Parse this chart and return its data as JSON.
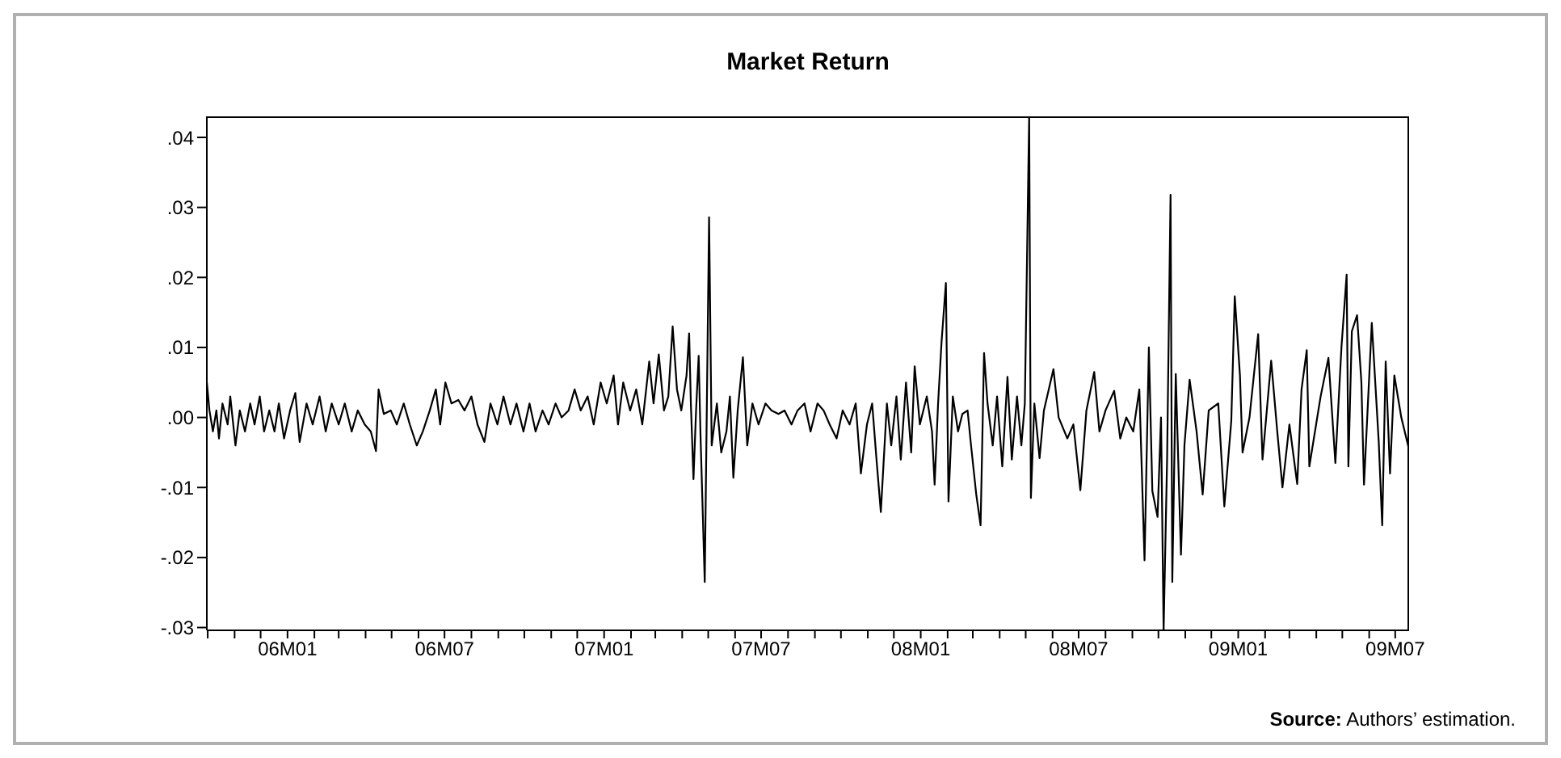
{
  "chart_data": {
    "type": "line",
    "title": "Market Return",
    "annotations": [
      "Source: Authors’ estimation."
    ],
    "x": [
      "2005-09-30",
      "2005-10-03",
      "2005-10-07",
      "2005-10-11",
      "2005-10-14",
      "2005-10-18",
      "2005-10-24",
      "2005-10-27",
      "2005-11-02",
      "2005-11-07",
      "2005-11-13",
      "2005-11-19",
      "2005-11-24",
      "2005-11-30",
      "2005-12-05",
      "2005-12-11",
      "2005-12-17",
      "2005-12-22",
      "2005-12-28",
      "2006-01-04",
      "2006-01-10",
      "2006-01-15",
      "2006-01-23",
      "2006-01-30",
      "2006-02-07",
      "2006-02-14",
      "2006-02-21",
      "2006-03-01",
      "2006-03-08",
      "2006-03-16",
      "2006-03-23",
      "2006-03-31",
      "2006-04-07",
      "2006-04-13",
      "2006-04-16",
      "2006-04-22",
      "2006-04-30",
      "2006-05-07",
      "2006-05-15",
      "2006-05-22",
      "2006-05-30",
      "2006-06-06",
      "2006-06-14",
      "2006-06-21",
      "2006-06-26",
      "2006-07-02",
      "2006-07-09",
      "2006-07-17",
      "2006-07-24",
      "2006-08-01",
      "2006-08-08",
      "2006-08-16",
      "2006-08-23",
      "2006-08-31",
      "2006-09-07",
      "2006-09-15",
      "2006-09-22",
      "2006-09-30",
      "2006-10-07",
      "2006-10-14",
      "2006-10-22",
      "2006-10-29",
      "2006-11-06",
      "2006-11-13",
      "2006-11-21",
      "2006-11-28",
      "2006-12-05",
      "2006-12-13",
      "2006-12-20",
      "2006-12-28",
      "2007-01-04",
      "2007-01-12",
      "2007-01-17",
      "2007-01-23",
      "2007-01-31",
      "2007-02-07",
      "2007-02-14",
      "2007-02-22",
      "2007-02-27",
      "2007-03-05",
      "2007-03-11",
      "2007-03-16",
      "2007-03-21",
      "2007-03-26",
      "2007-03-31",
      "2007-04-06",
      "2007-04-09",
      "2007-04-11",
      "2007-04-14",
      "2007-04-17",
      "2007-04-20",
      "2007-04-22",
      "2007-04-27",
      "2007-05-02",
      "2007-05-05",
      "2007-05-11",
      "2007-05-16",
      "2007-05-22",
      "2007-05-26",
      "2007-05-30",
      "2007-06-04",
      "2007-06-10",
      "2007-06-15",
      "2007-06-21",
      "2007-06-28",
      "2007-07-06",
      "2007-07-13",
      "2007-07-21",
      "2007-07-28",
      "2007-08-05",
      "2007-08-12",
      "2007-08-20",
      "2007-08-27",
      "2007-09-04",
      "2007-09-11",
      "2007-09-18",
      "2007-09-26",
      "2007-10-03",
      "2007-10-11",
      "2007-10-18",
      "2007-10-24",
      "2007-10-31",
      "2007-11-06",
      "2007-11-11",
      "2007-11-16",
      "2007-11-23",
      "2007-11-28",
      "2007-12-04",
      "2007-12-09",
      "2007-12-15",
      "2007-12-21",
      "2007-12-25",
      "2007-12-31",
      "2008-01-08",
      "2008-01-14",
      "2008-01-17",
      "2008-01-21",
      "2008-01-25",
      "2008-01-30",
      "2008-02-02",
      "2008-02-07",
      "2008-02-13",
      "2008-02-18",
      "2008-02-24",
      "2008-02-28",
      "2008-03-05",
      "2008-03-10",
      "2008-03-14",
      "2008-03-18",
      "2008-03-24",
      "2008-03-29",
      "2008-04-04",
      "2008-04-10",
      "2008-04-15",
      "2008-04-21",
      "2008-04-26",
      "2008-04-30",
      "2008-05-05",
      "2008-05-07",
      "2008-05-11",
      "2008-05-17",
      "2008-05-22",
      "2008-06-02",
      "2008-06-08",
      "2008-06-18",
      "2008-06-25",
      "2008-07-03",
      "2008-07-10",
      "2008-07-19",
      "2008-07-25",
      "2008-08-01",
      "2008-08-11",
      "2008-08-18",
      "2008-08-25",
      "2008-09-02",
      "2008-09-09",
      "2008-09-15",
      "2008-09-20",
      "2008-09-24",
      "2008-09-30",
      "2008-10-04",
      "2008-10-07",
      "2008-10-11",
      "2008-10-15",
      "2008-10-17",
      "2008-10-21",
      "2008-10-27",
      "2008-10-31",
      "2008-11-06",
      "2008-11-14",
      "2008-11-21",
      "2008-11-28",
      "2008-12-09",
      "2008-12-16",
      "2008-12-24",
      "2008-12-28",
      "2009-01-03",
      "2009-01-06",
      "2009-01-14",
      "2009-01-24",
      "2009-01-29",
      "2009-02-08",
      "2009-02-15",
      "2009-02-21",
      "2009-03-01",
      "2009-03-10",
      "2009-03-15",
      "2009-03-21",
      "2009-03-24",
      "2009-04-06",
      "2009-04-15",
      "2009-04-23",
      "2009-04-30",
      "2009-05-06",
      "2009-05-08",
      "2009-05-12",
      "2009-05-18",
      "2009-05-23",
      "2009-05-26",
      "2009-06-04",
      "2009-06-12",
      "2009-06-16",
      "2009-06-20",
      "2009-06-25",
      "2009-06-30",
      "2009-07-08",
      "2009-07-17"
    ],
    "series": [
      {
        "color": "#000000",
        "values": [
          0.005,
          0.001,
          -0.002,
          0.001,
          -0.003,
          0.002,
          -0.001,
          0.003,
          -0.004,
          0.001,
          -0.002,
          0.002,
          -0.001,
          0.003,
          -0.002,
          0.001,
          -0.002,
          0.002,
          -0.003,
          0.001,
          0.0035,
          -0.0035,
          0.002,
          -0.001,
          0.003,
          -0.002,
          0.002,
          -0.001,
          0.002,
          -0.002,
          0.001,
          -0.001,
          -0.002,
          -0.0048,
          0.004,
          0.0005,
          0.001,
          -0.001,
          0.002,
          -0.001,
          -0.004,
          -0.002,
          0.001,
          0.004,
          -0.001,
          0.005,
          0.002,
          0.0025,
          0.001,
          0.003,
          -0.001,
          -0.0035,
          0.002,
          -0.001,
          0.003,
          -0.001,
          0.002,
          -0.002,
          0.002,
          -0.002,
          0.001,
          -0.001,
          0.002,
          0,
          0.001,
          0.004,
          0.001,
          0.003,
          -0.001,
          0.005,
          0.002,
          0.006,
          -0.001,
          0.005,
          0.001,
          0.004,
          -0.001,
          0.008,
          0.002,
          0.009,
          0.001,
          0.003,
          0.013,
          0.004,
          0.001,
          0.006,
          0.012,
          0.002,
          -0.0088,
          0.001,
          0.0088,
          -0.002,
          -0.0235,
          0.0286,
          -0.004,
          0.002,
          -0.005,
          -0.002,
          0.003,
          -0.0086,
          0.001,
          0.0086,
          -0.004,
          0.002,
          -0.001,
          0.002,
          0.001,
          0.0005,
          0.001,
          -0.001,
          0.001,
          0.002,
          -0.002,
          0.002,
          0.001,
          -0.001,
          -0.003,
          0.001,
          -0.001,
          0.002,
          -0.008,
          -0.001,
          0.002,
          -0.006,
          -0.0135,
          0.002,
          -0.004,
          0.003,
          -0.006,
          0.005,
          -0.005,
          0.0073,
          -0.001,
          0.003,
          -0.002,
          -0.0096,
          0.002,
          0.0108,
          0.0192,
          -0.012,
          0.003,
          -0.002,
          0.0005,
          0.001,
          -0.004,
          -0.011,
          -0.0154,
          0.0092,
          0.002,
          -0.004,
          0.003,
          -0.007,
          0.0058,
          -0.006,
          0.003,
          -0.004,
          0.002,
          0.043,
          -0.0115,
          0.002,
          -0.0058,
          0.001,
          0.0069,
          0,
          -0.003,
          -0.001,
          -0.0104,
          0.001,
          0.0065,
          -0.002,
          0.001,
          0.0038,
          -0.003,
          0,
          -0.002,
          0.004,
          -0.0204,
          0.01,
          -0.0105,
          -0.0142,
          0,
          -0.0304,
          -0.006,
          0.0318,
          -0.0235,
          0.0062,
          -0.0196,
          -0.004,
          0.0054,
          -0.002,
          -0.011,
          0.001,
          0.002,
          -0.0127,
          -0.0005,
          0.0173,
          0.006,
          -0.005,
          0,
          0.0119,
          -0.006,
          0.0081,
          -0.002,
          -0.01,
          -0.001,
          -0.0095,
          0.004,
          0.0096,
          -0.007,
          0.003,
          0.0085,
          -0.0065,
          0.01,
          0.0204,
          -0.007,
          0.0123,
          0.0146,
          0.005,
          -0.0096,
          0.0135,
          -0.0035,
          -0.0154,
          0.008,
          -0.008,
          0.006,
          0,
          -0.0046
        ]
      }
    ],
    "xlim": [
      "2005-09-30",
      "2009-07-17"
    ],
    "xticks": [
      {
        "value": "2005-10",
        "label": null
      },
      {
        "value": "2005-11",
        "label": null
      },
      {
        "value": "2005-12",
        "label": null
      },
      {
        "value": "2006-01",
        "label": "06M01"
      },
      {
        "value": "2006-02",
        "label": null
      },
      {
        "value": "2006-03",
        "label": null
      },
      {
        "value": "2006-04",
        "label": null
      },
      {
        "value": "2006-05",
        "label": null
      },
      {
        "value": "2006-06",
        "label": null
      },
      {
        "value": "2006-07",
        "label": "06M07"
      },
      {
        "value": "2006-08",
        "label": null
      },
      {
        "value": "2006-09",
        "label": null
      },
      {
        "value": "2006-10",
        "label": null
      },
      {
        "value": "2006-11",
        "label": null
      },
      {
        "value": "2006-12",
        "label": null
      },
      {
        "value": "2007-01",
        "label": "07M01"
      },
      {
        "value": "2007-02",
        "label": null
      },
      {
        "value": "2007-03",
        "label": null
      },
      {
        "value": "2007-04",
        "label": null
      },
      {
        "value": "2007-05",
        "label": null
      },
      {
        "value": "2007-06",
        "label": null
      },
      {
        "value": "2007-07",
        "label": "07M07"
      },
      {
        "value": "2007-08",
        "label": null
      },
      {
        "value": "2007-09",
        "label": null
      },
      {
        "value": "2007-10",
        "label": null
      },
      {
        "value": "2007-11",
        "label": null
      },
      {
        "value": "2007-12",
        "label": null
      },
      {
        "value": "2008-01",
        "label": "08M01"
      },
      {
        "value": "2008-02",
        "label": null
      },
      {
        "value": "2008-03",
        "label": null
      },
      {
        "value": "2008-04",
        "label": null
      },
      {
        "value": "2008-05",
        "label": null
      },
      {
        "value": "2008-06",
        "label": null
      },
      {
        "value": "2008-07",
        "label": "08M07"
      },
      {
        "value": "2008-08",
        "label": null
      },
      {
        "value": "2008-09",
        "label": null
      },
      {
        "value": "2008-10",
        "label": null
      },
      {
        "value": "2008-11",
        "label": null
      },
      {
        "value": "2008-12",
        "label": null
      },
      {
        "value": "2009-01",
        "label": "09M01"
      },
      {
        "value": "2009-02",
        "label": null
      },
      {
        "value": "2009-03",
        "label": null
      },
      {
        "value": "2009-04",
        "label": null
      },
      {
        "value": "2009-05",
        "label": null
      },
      {
        "value": "2009-06",
        "label": null
      },
      {
        "value": "2009-07",
        "label": "09M07"
      }
    ],
    "ylim": [
      -0.0304,
      0.043
    ],
    "yticks": [
      {
        "value": -0.03,
        "label": "-.03"
      },
      {
        "value": -0.02,
        "label": "-.02"
      },
      {
        "value": -0.01,
        "label": "-.01"
      },
      {
        "value": 0,
        "label": ".00"
      },
      {
        "value": 0.01,
        "label": ".01"
      },
      {
        "value": 0.02,
        "label": ".02"
      },
      {
        "value": 0.03,
        "label": ".03"
      },
      {
        "value": 0.04,
        "label": ".04"
      }
    ],
    "line_style": "solid"
  }
}
